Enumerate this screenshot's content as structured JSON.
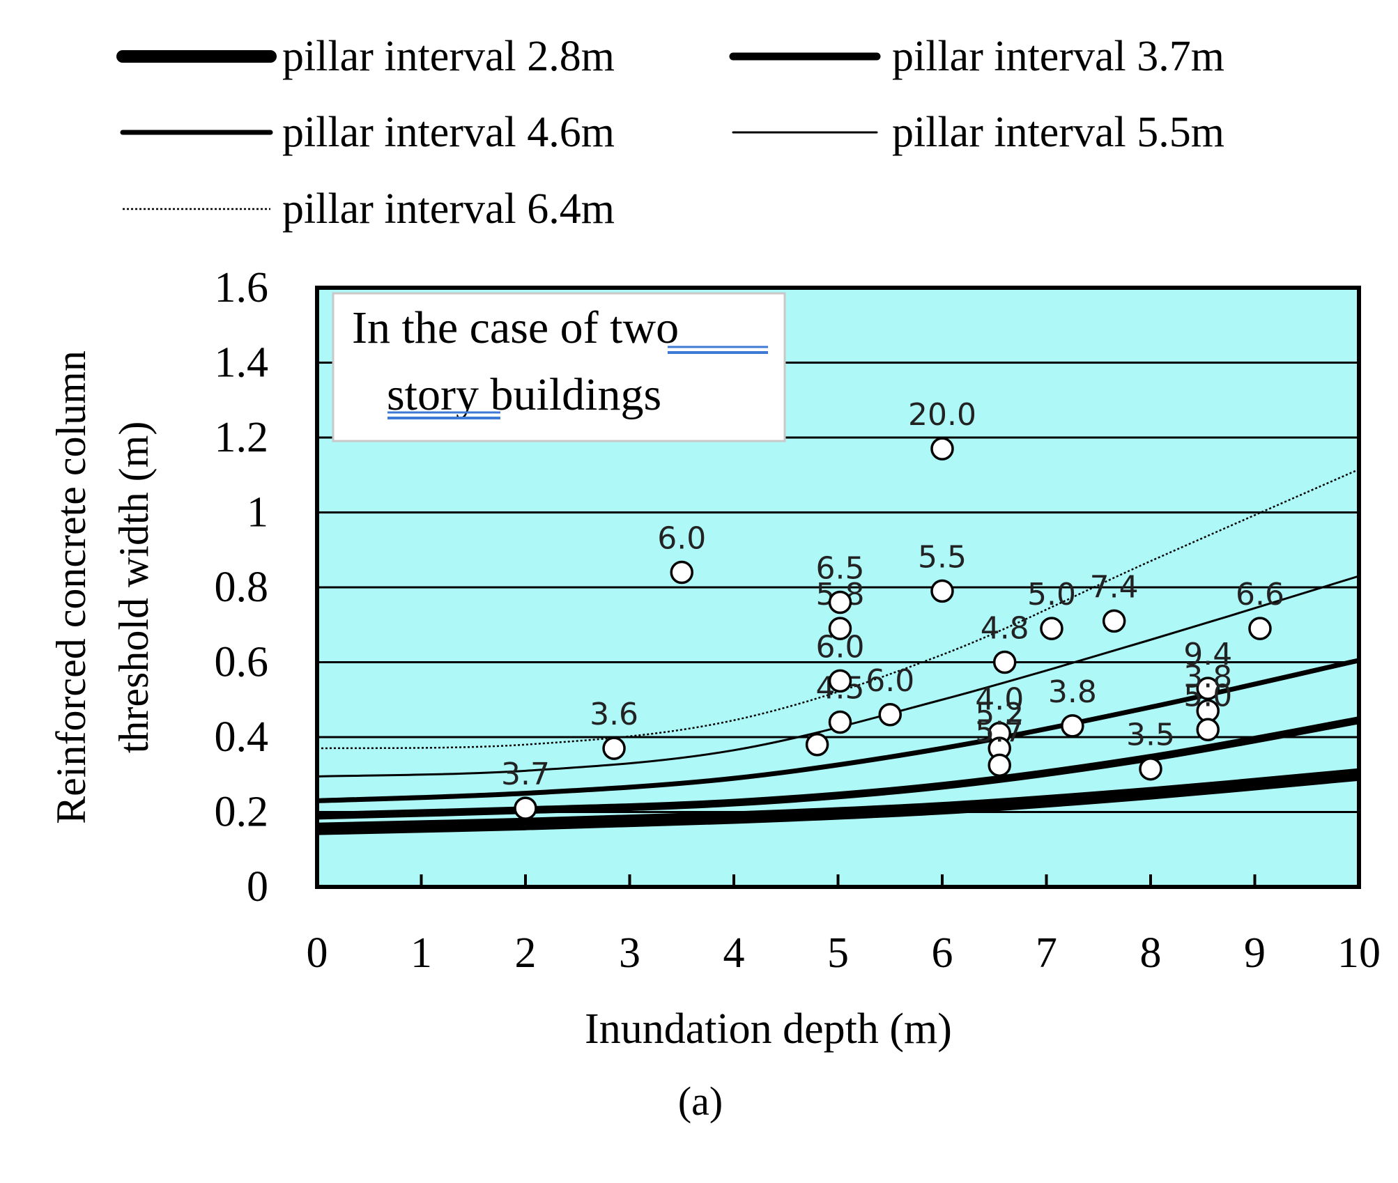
{
  "chart_data": {
    "type": "scatter",
    "title": "",
    "xlabel": "Inundation depth (m)",
    "ylabel_lines": [
      "Reinforced concrete column",
      "threshold width (m)"
    ],
    "xlim": [
      0,
      10
    ],
    "ylim": [
      0,
      1.6
    ],
    "x_ticks": [
      0,
      1,
      2,
      3,
      4,
      5,
      6,
      7,
      8,
      9,
      10
    ],
    "y_ticks": [
      0,
      0.2,
      0.4,
      0.6,
      0.8,
      1,
      1.2,
      1.4,
      1.6
    ],
    "x_tick_labels": [
      "0",
      "1",
      "2",
      "3",
      "4",
      "5",
      "6",
      "7",
      "8",
      "9",
      "10"
    ],
    "y_tick_labels": [
      "0",
      "0.2",
      "0.4",
      "0.6",
      "0.8",
      "1",
      "1.2",
      "1.4",
      "1.6"
    ],
    "grid": "horizontal",
    "legend_position": "top",
    "annotation_lines": [
      "In the case of two",
      "story buildings"
    ],
    "sublabel": "(a)",
    "colors": {
      "plot_background": "#aff8f8",
      "line": "#000000",
      "marker_fill": "#ffffff"
    },
    "series": [
      {
        "name": "pillar interval 2.8m",
        "type": "line",
        "stroke": "very-thick",
        "x": [
          0,
          2,
          4,
          6,
          8,
          10
        ],
        "y": [
          0.155,
          0.168,
          0.185,
          0.21,
          0.25,
          0.3
        ]
      },
      {
        "name": "pillar interval 3.7m",
        "type": "line",
        "stroke": "thick",
        "x": [
          0,
          2,
          4,
          6,
          8,
          10
        ],
        "y": [
          0.19,
          0.205,
          0.225,
          0.27,
          0.345,
          0.445
        ]
      },
      {
        "name": "pillar interval 4.6m",
        "type": "line",
        "stroke": "medium",
        "x": [
          0,
          2,
          4,
          6,
          8,
          10
        ],
        "y": [
          0.23,
          0.25,
          0.29,
          0.37,
          0.48,
          0.605
        ]
      },
      {
        "name": "pillar interval 5.5m",
        "type": "line",
        "stroke": "thin",
        "x": [
          0,
          2,
          4,
          6,
          8,
          10
        ],
        "y": [
          0.295,
          0.31,
          0.365,
          0.5,
          0.66,
          0.83
        ]
      },
      {
        "name": "pillar interval 6.4m",
        "type": "line",
        "stroke": "dotted",
        "x": [
          0,
          2,
          4,
          6,
          8,
          10
        ],
        "y": [
          0.37,
          0.38,
          0.445,
          0.62,
          0.87,
          1.115
        ]
      }
    ],
    "points": [
      {
        "x": 2.0,
        "y": 0.21,
        "label": "3.7"
      },
      {
        "x": 2.85,
        "y": 0.37,
        "label": "3.6"
      },
      {
        "x": 3.5,
        "y": 0.84,
        "label": "6.0"
      },
      {
        "x": 4.8,
        "y": 0.38,
        "label": ""
      },
      {
        "x": 5.02,
        "y": 0.44,
        "label": "4.5"
      },
      {
        "x": 5.02,
        "y": 0.55,
        "label": "6.0"
      },
      {
        "x": 5.02,
        "y": 0.69,
        "label": "5.8"
      },
      {
        "x": 5.02,
        "y": 0.76,
        "label": "6.5"
      },
      {
        "x": 5.5,
        "y": 0.46,
        "label": "6.0"
      },
      {
        "x": 6.0,
        "y": 1.17,
        "label": "20.0"
      },
      {
        "x": 6.0,
        "y": 0.79,
        "label": "5.5"
      },
      {
        "x": 6.55,
        "y": 0.41,
        "label": "4.0"
      },
      {
        "x": 6.55,
        "y": 0.37,
        "label": "5.2"
      },
      {
        "x": 6.55,
        "y": 0.325,
        "label": "5.7"
      },
      {
        "x": 6.6,
        "y": 0.6,
        "label": "4.8"
      },
      {
        "x": 7.05,
        "y": 0.69,
        "label": "5.0"
      },
      {
        "x": 7.25,
        "y": 0.43,
        "label": "3.8"
      },
      {
        "x": 7.65,
        "y": 0.71,
        "label": "7.4"
      },
      {
        "x": 8.0,
        "y": 0.315,
        "label": "3.5"
      },
      {
        "x": 8.55,
        "y": 0.53,
        "label": "9.4"
      },
      {
        "x": 8.55,
        "y": 0.47,
        "label": "3.8"
      },
      {
        "x": 8.55,
        "y": 0.42,
        "label": "5.0"
      },
      {
        "x": 9.05,
        "y": 0.69,
        "label": "6.6"
      }
    ]
  }
}
